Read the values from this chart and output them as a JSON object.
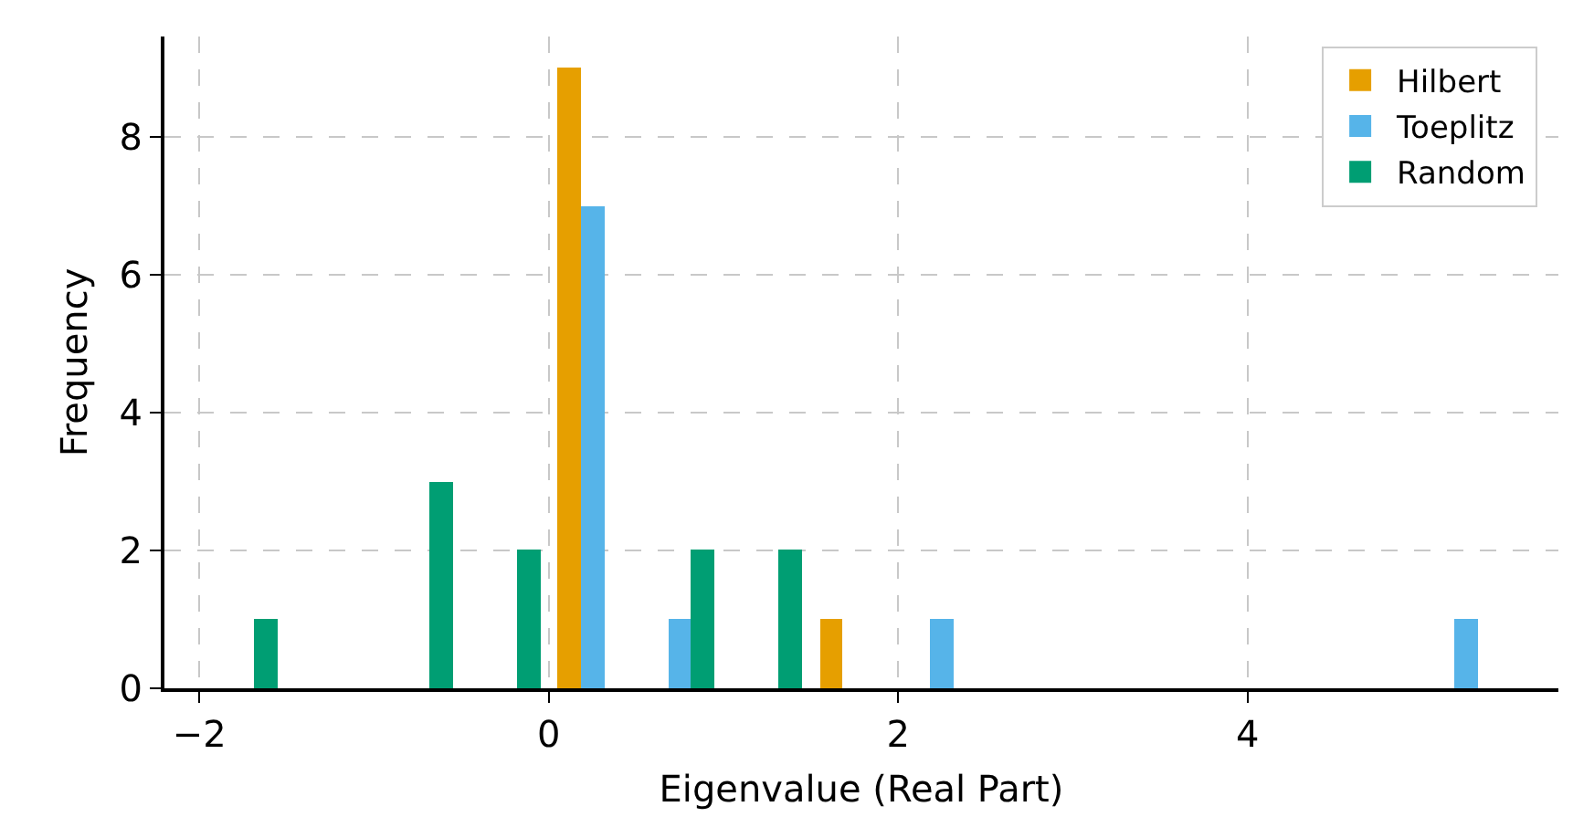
{
  "chart_data": {
    "type": "histogram",
    "xlabel": "Eigenvalue (Real Part)",
    "ylabel": "Frequency",
    "bins": [
      -2,
      -1.5,
      -1,
      -0.5,
      0,
      0.5,
      1,
      1.5,
      2,
      2.5,
      3,
      3.5,
      4,
      4.5,
      5,
      5.5
    ],
    "series": [
      {
        "name": "Hilbert",
        "color": "#e69f00",
        "values": [
          0,
          0,
          0,
          0,
          9,
          0,
          0,
          1,
          0,
          0,
          0,
          0,
          0,
          0,
          0
        ]
      },
      {
        "name": "Toeplitz",
        "color": "#56b4e9",
        "values": [
          0,
          0,
          0,
          0,
          7,
          1,
          0,
          0,
          1,
          0,
          0,
          0,
          0,
          0,
          1
        ]
      },
      {
        "name": "Random",
        "color": "#009e73",
        "values": [
          1,
          0,
          3,
          2,
          0,
          2,
          2,
          0,
          0,
          0,
          0,
          0,
          0,
          0,
          0
        ]
      }
    ],
    "xlim": [
      -2.2,
      5.78
    ],
    "ylim": [
      0,
      9.45
    ],
    "xticks": [
      {
        "value": -2,
        "label": "−2"
      },
      0,
      2,
      4
    ],
    "yticks": [
      0,
      2,
      4,
      6,
      8
    ],
    "grid": true,
    "legend": "top right"
  }
}
